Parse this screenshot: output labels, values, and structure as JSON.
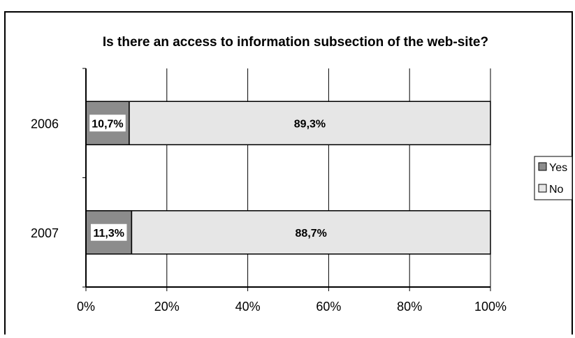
{
  "chart_data": {
    "type": "bar",
    "orientation": "horizontal",
    "stacked": true,
    "title": "Is there an access to information subsection of the web-site?",
    "categories": [
      "2006",
      "2007"
    ],
    "series": [
      {
        "name": "Yes",
        "values": [
          10.7,
          11.3
        ],
        "labels": [
          "10,7%",
          "11,3%"
        ],
        "color": "#8c8c8c"
      },
      {
        "name": "No",
        "values": [
          89.3,
          88.7
        ],
        "labels": [
          "89,3%",
          "88,7%"
        ],
        "color": "#e6e6e6"
      }
    ],
    "x_ticks": [
      "0%",
      "20%",
      "40%",
      "60%",
      "80%",
      "100%"
    ],
    "xlim": [
      0,
      100
    ],
    "grid": true,
    "legend": "right"
  }
}
